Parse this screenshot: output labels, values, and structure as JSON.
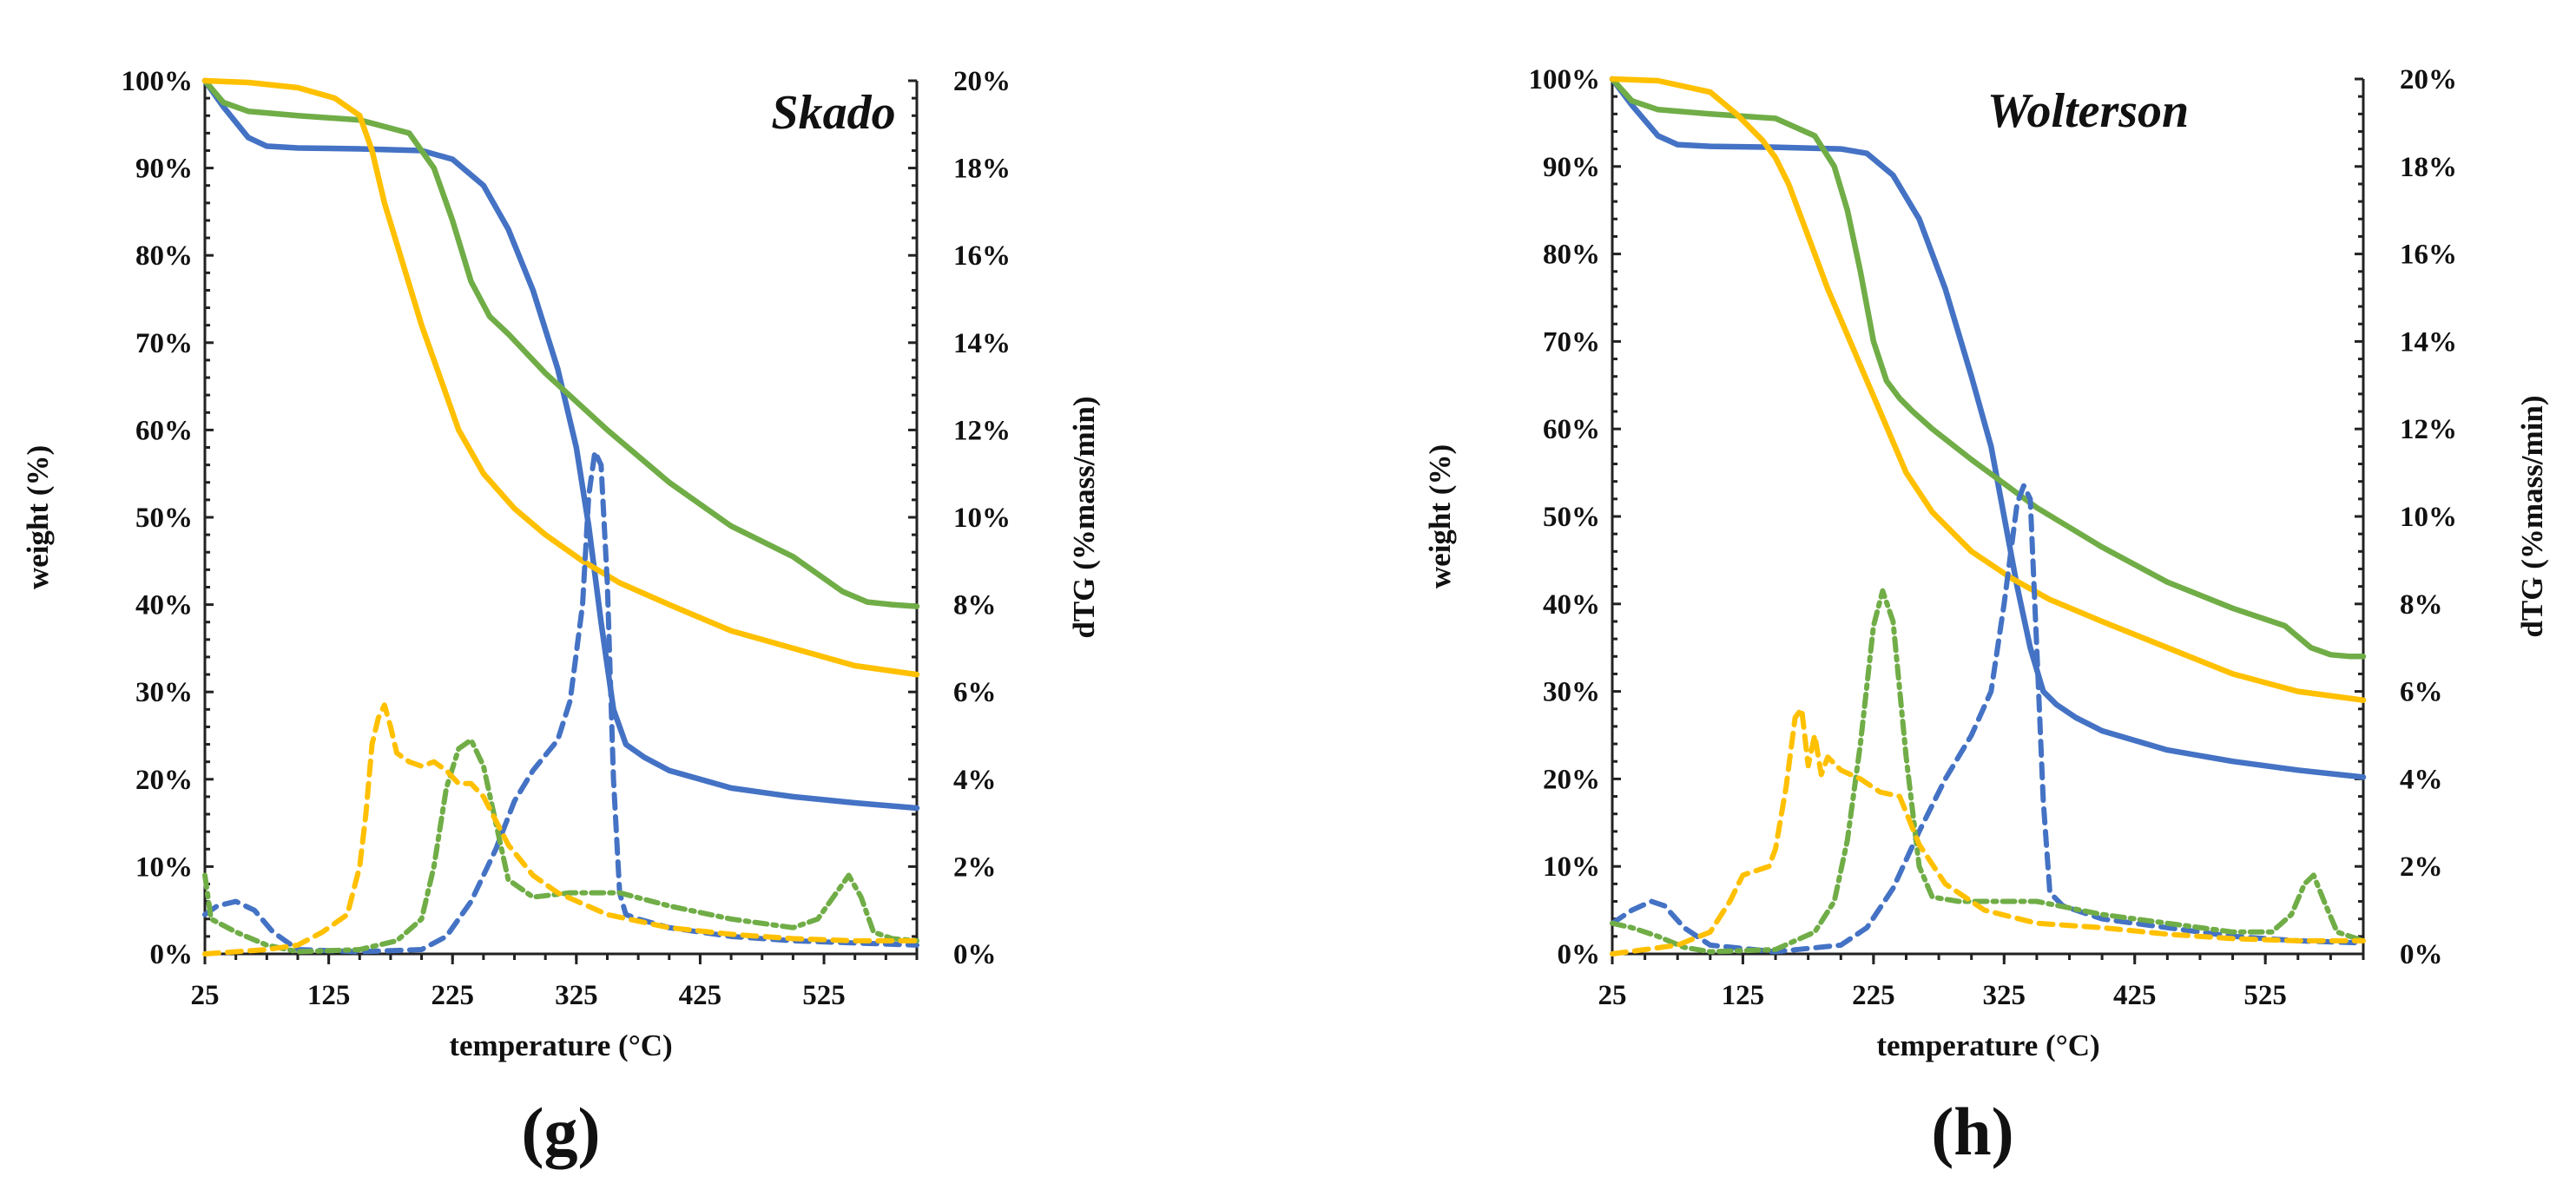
{
  "figure": {
    "description_labels": [
      "(g)",
      "(h)"
    ]
  },
  "colors": {
    "blue": "#4472C4",
    "green": "#70AD47",
    "yellow": "#FFC000"
  },
  "chart_data": [
    {
      "type": "line",
      "title": "Skado",
      "panel_label": "(g)",
      "xlabel": "temperature (°C)",
      "ylabel": "weight (%)",
      "y2label": "dTG (%mass/min)",
      "xlim": [
        25,
        600
      ],
      "ylim": [
        0,
        100
      ],
      "y2lim": [
        0,
        20
      ],
      "xticks": [
        25,
        125,
        225,
        325,
        425,
        525
      ],
      "xtick_labels": [
        "25",
        "125",
        "225",
        "325",
        "425",
        "525"
      ],
      "yticks": [
        0,
        10,
        20,
        30,
        40,
        50,
        60,
        70,
        80,
        90,
        100
      ],
      "ytick_labels": [
        "0%",
        "10%",
        "20%",
        "30%",
        "40%",
        "50%",
        "60%",
        "70%",
        "80%",
        "90%",
        "100%"
      ],
      "y2ticks": [
        0,
        2,
        4,
        6,
        8,
        10,
        12,
        14,
        16,
        18,
        20
      ],
      "y2tick_labels": [
        "0%",
        "2%",
        "4%",
        "6%",
        "8%",
        "10%",
        "12%",
        "14%",
        "16%",
        "18%",
        "20%"
      ],
      "series": [
        {
          "name": "TG blue",
          "axis": "y",
          "color": "#4472C4",
          "dash": "solid",
          "x": [
            25,
            40,
            60,
            75,
            100,
            150,
            200,
            225,
            250,
            270,
            290,
            310,
            325,
            335,
            345,
            355,
            365,
            380,
            400,
            450,
            500,
            550,
            600
          ],
          "y": [
            100,
            97,
            93.5,
            92.5,
            92.3,
            92.2,
            92,
            91,
            88,
            83,
            76,
            67,
            58,
            49,
            38,
            28,
            24,
            22.5,
            21,
            19,
            18,
            17.3,
            16.7
          ]
        },
        {
          "name": "TG green",
          "axis": "y",
          "color": "#70AD47",
          "dash": "solid",
          "x": [
            25,
            40,
            60,
            100,
            150,
            190,
            210,
            225,
            240,
            255,
            270,
            300,
            350,
            400,
            450,
            500,
            520,
            540,
            560,
            580,
            600
          ],
          "y": [
            100,
            97.5,
            96.5,
            96,
            95.5,
            94,
            90,
            84,
            77,
            73,
            71,
            66.5,
            60,
            54,
            49,
            45.5,
            43.5,
            41.5,
            40.3,
            40,
            39.8
          ]
        },
        {
          "name": "TG yellow",
          "axis": "y",
          "color": "#FFC000",
          "dash": "solid",
          "x": [
            25,
            60,
            100,
            130,
            150,
            160,
            170,
            185,
            200,
            215,
            230,
            250,
            275,
            300,
            330,
            360,
            400,
            450,
            500,
            550,
            600
          ],
          "y": [
            100,
            99.8,
            99.2,
            98,
            96,
            92,
            86,
            79,
            72,
            66,
            60,
            55,
            51,
            48,
            45,
            42.5,
            40,
            37,
            35,
            33,
            32
          ]
        },
        {
          "name": "dTG blue",
          "axis": "y2",
          "color": "#4472C4",
          "dash": "dash",
          "x": [
            25,
            35,
            50,
            65,
            80,
            100,
            150,
            200,
            220,
            240,
            260,
            275,
            290,
            310,
            320,
            330,
            335,
            340,
            345,
            350,
            355,
            360,
            365,
            375,
            400,
            450,
            500,
            550,
            600
          ],
          "y": [
            0.9,
            1.1,
            1.2,
            1.0,
            0.5,
            0.1,
            0.05,
            0.1,
            0.4,
            1.2,
            2.4,
            3.5,
            4.2,
            4.9,
            5.8,
            8.0,
            10.5,
            11.5,
            11.2,
            8.5,
            4.0,
            1.4,
            0.9,
            0.8,
            0.6,
            0.4,
            0.3,
            0.25,
            0.2
          ]
        },
        {
          "name": "dTG green",
          "axis": "y2",
          "color": "#70AD47",
          "dash": "dashdot",
          "x": [
            25,
            30,
            50,
            75,
            100,
            150,
            180,
            200,
            210,
            220,
            230,
            240,
            250,
            260,
            270,
            290,
            320,
            360,
            400,
            450,
            500,
            520,
            535,
            545,
            555,
            565,
            580,
            600
          ],
          "y": [
            1.8,
            0.8,
            0.5,
            0.2,
            0.05,
            0.1,
            0.3,
            0.8,
            2.0,
            3.8,
            4.7,
            4.9,
            4.3,
            3.0,
            1.7,
            1.3,
            1.4,
            1.4,
            1.1,
            0.8,
            0.6,
            0.8,
            1.4,
            1.8,
            1.3,
            0.5,
            0.35,
            0.3
          ]
        },
        {
          "name": "dTG yellow",
          "axis": "y2",
          "color": "#FFC000",
          "dash": "dash",
          "x": [
            25,
            50,
            75,
            100,
            120,
            140,
            150,
            155,
            160,
            165,
            170,
            175,
            180,
            190,
            200,
            210,
            220,
            230,
            240,
            250,
            270,
            290,
            310,
            350,
            400,
            450,
            500,
            550,
            600
          ],
          "y": [
            0,
            0.05,
            0.1,
            0.2,
            0.5,
            0.9,
            2.0,
            3.2,
            4.8,
            5.4,
            5.7,
            5.2,
            4.6,
            4.4,
            4.3,
            4.4,
            4.2,
            3.9,
            3.9,
            3.6,
            2.5,
            1.8,
            1.4,
            0.9,
            0.6,
            0.45,
            0.35,
            0.3,
            0.3
          ]
        }
      ]
    },
    {
      "type": "line",
      "title": "Wolterson",
      "panel_label": "(h)",
      "xlabel": "temperature (°C)",
      "ylabel": "weight (%)",
      "y2label": "dTG (%mass/min)",
      "xlim": [
        25,
        600
      ],
      "ylim": [
        0,
        100
      ],
      "y2lim": [
        0,
        20
      ],
      "xticks": [
        25,
        125,
        225,
        325,
        425,
        525
      ],
      "xtick_labels": [
        "25",
        "125",
        "225",
        "325",
        "425",
        "525"
      ],
      "yticks": [
        0,
        10,
        20,
        30,
        40,
        50,
        60,
        70,
        80,
        90,
        100
      ],
      "ytick_labels": [
        "0%",
        "10%",
        "20%",
        "30%",
        "40%",
        "50%",
        "60%",
        "70%",
        "80%",
        "90%",
        "100%"
      ],
      "y2ticks": [
        0,
        2,
        4,
        6,
        8,
        10,
        12,
        14,
        16,
        18,
        20
      ],
      "y2tick_labels": [
        "0%",
        "2%",
        "4%",
        "6%",
        "8%",
        "10%",
        "12%",
        "14%",
        "16%",
        "18%",
        "20%"
      ],
      "series": [
        {
          "name": "TG blue",
          "axis": "y",
          "color": "#4472C4",
          "dash": "solid",
          "x": [
            25,
            40,
            60,
            75,
            100,
            150,
            200,
            220,
            240,
            260,
            280,
            300,
            315,
            325,
            335,
            345,
            355,
            365,
            380,
            400,
            450,
            500,
            550,
            600
          ],
          "y": [
            100,
            97,
            93.5,
            92.5,
            92.3,
            92.2,
            92,
            91.5,
            89,
            84,
            76,
            66,
            58,
            50,
            42,
            35,
            30,
            28.5,
            27,
            25.5,
            23.3,
            22,
            21,
            20.2
          ]
        },
        {
          "name": "TG green",
          "axis": "y",
          "color": "#70AD47",
          "dash": "solid",
          "x": [
            25,
            40,
            60,
            100,
            150,
            180,
            195,
            205,
            215,
            225,
            235,
            245,
            255,
            270,
            300,
            350,
            400,
            450,
            500,
            540,
            560,
            575,
            590,
            600
          ],
          "y": [
            100,
            97.5,
            96.5,
            96,
            95.5,
            93.5,
            90,
            85,
            78,
            70,
            65.5,
            63.5,
            62,
            60,
            56.5,
            51,
            46.5,
            42.5,
            39.5,
            37.5,
            35,
            34.2,
            34,
            34
          ]
        },
        {
          "name": "TG yellow",
          "axis": "y",
          "color": "#FFC000",
          "dash": "solid",
          "x": [
            25,
            60,
            100,
            120,
            140,
            150,
            160,
            175,
            190,
            210,
            230,
            250,
            270,
            300,
            330,
            360,
            400,
            450,
            500,
            550,
            600
          ],
          "y": [
            100,
            99.8,
            98.5,
            96,
            93,
            91,
            88,
            82,
            76,
            69,
            62,
            55,
            50.5,
            46,
            43,
            40.5,
            38,
            35,
            32,
            30,
            29
          ]
        },
        {
          "name": "dTG blue",
          "axis": "y2",
          "color": "#4472C4",
          "dash": "dash",
          "x": [
            25,
            40,
            55,
            65,
            80,
            100,
            150,
            200,
            220,
            240,
            260,
            280,
            300,
            315,
            325,
            335,
            340,
            345,
            350,
            355,
            360,
            370,
            400,
            450,
            500,
            550,
            600
          ],
          "y": [
            0.7,
            1.0,
            1.2,
            1.1,
            0.6,
            0.2,
            0.05,
            0.2,
            0.6,
            1.5,
            2.8,
            4.0,
            5.0,
            6.0,
            8.0,
            10.3,
            10.7,
            10.4,
            7.0,
            3.5,
            1.4,
            1.1,
            0.8,
            0.6,
            0.4,
            0.3,
            0.25
          ]
        },
        {
          "name": "dTG green",
          "axis": "y2",
          "color": "#70AD47",
          "dash": "dashdot",
          "x": [
            25,
            40,
            60,
            80,
            100,
            150,
            180,
            195,
            205,
            215,
            225,
            232,
            240,
            250,
            260,
            270,
            290,
            320,
            350,
            400,
            450,
            500,
            530,
            545,
            555,
            562,
            570,
            580,
            600
          ],
          "y": [
            0.7,
            0.6,
            0.4,
            0.15,
            0.05,
            0.1,
            0.5,
            1.2,
            2.6,
            4.8,
            7.5,
            8.3,
            7.6,
            4.5,
            2.0,
            1.3,
            1.2,
            1.2,
            1.2,
            0.9,
            0.7,
            0.5,
            0.5,
            0.9,
            1.6,
            1.8,
            1.2,
            0.5,
            0.3
          ]
        },
        {
          "name": "dTG yellow",
          "axis": "y2",
          "color": "#FFC000",
          "dash": "dash",
          "x": [
            25,
            50,
            75,
            100,
            115,
            125,
            135,
            145,
            150,
            158,
            165,
            170,
            175,
            180,
            185,
            190,
            200,
            215,
            230,
            245,
            260,
            280,
            310,
            350,
            400,
            450,
            500,
            550,
            600
          ],
          "y": [
            0,
            0.1,
            0.2,
            0.5,
            1.2,
            1.8,
            1.9,
            2.0,
            2.4,
            3.8,
            5.4,
            5.6,
            4.3,
            5.0,
            4.1,
            4.5,
            4.2,
            4.0,
            3.7,
            3.6,
            2.5,
            1.6,
            1.0,
            0.7,
            0.6,
            0.45,
            0.35,
            0.3,
            0.3
          ]
        }
      ]
    }
  ]
}
